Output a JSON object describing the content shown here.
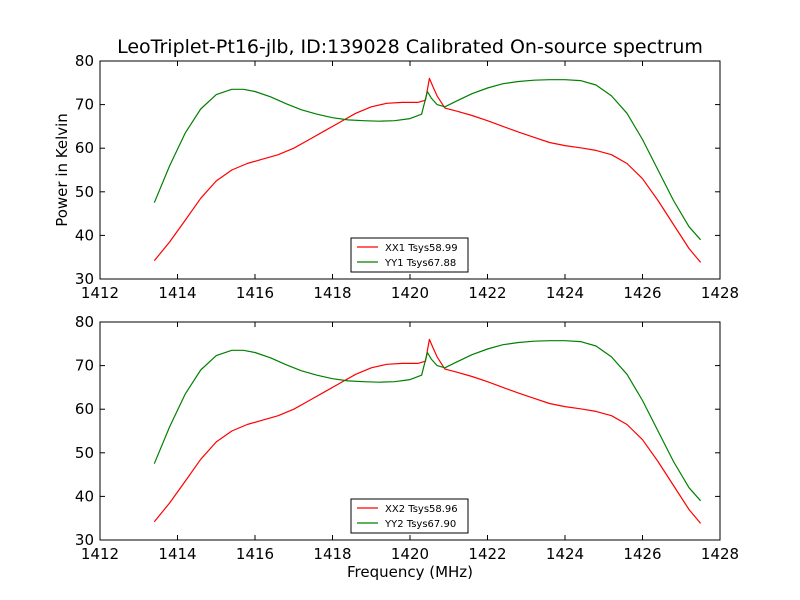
{
  "title": "LeoTriplet-Pt16-jlb, ID:139028 Calibrated On-source spectrum",
  "xlabel": "Frequency (MHz)",
  "chart_data": [
    {
      "type": "line",
      "panel": "top",
      "ylabel": "Power in Kelvin",
      "xlabel": "",
      "xlim": [
        1412,
        1428
      ],
      "ylim": [
        30,
        80
      ],
      "xticks": [
        "1412",
        "1414",
        "1416",
        "1418",
        "1420",
        "1422",
        "1424",
        "1426",
        "1428"
      ],
      "yticks": [
        "30",
        "40",
        "50",
        "60",
        "70",
        "80"
      ],
      "legend_position": "lower-center",
      "series": [
        {
          "name": "XX1 Tsys58.99",
          "color": "#ff0000",
          "x": [
            1413.4,
            1413.8,
            1414.2,
            1414.6,
            1415.0,
            1415.4,
            1415.8,
            1416.2,
            1416.6,
            1417.0,
            1417.4,
            1417.8,
            1418.2,
            1418.6,
            1419.0,
            1419.4,
            1419.8,
            1420.2,
            1420.4,
            1420.5,
            1420.6,
            1420.7,
            1420.9,
            1421.2,
            1421.6,
            1422.0,
            1422.4,
            1422.8,
            1423.2,
            1423.6,
            1424.0,
            1424.4,
            1424.8,
            1425.2,
            1425.6,
            1426.0,
            1426.4,
            1426.8,
            1427.2,
            1427.5
          ],
          "y": [
            34.2,
            38.5,
            43.5,
            48.5,
            52.5,
            55.0,
            56.5,
            57.5,
            58.5,
            60.0,
            62.0,
            64.0,
            66.0,
            68.0,
            69.5,
            70.3,
            70.5,
            70.5,
            71.0,
            76.0,
            74.0,
            72.0,
            69.2,
            68.5,
            67.5,
            66.3,
            65.0,
            63.7,
            62.5,
            61.3,
            60.6,
            60.1,
            59.5,
            58.5,
            56.5,
            53.0,
            48.0,
            42.5,
            37.0,
            33.8
          ]
        },
        {
          "name": "YY1 Tsys67.88",
          "color": "#008000",
          "x": [
            1413.4,
            1413.8,
            1414.2,
            1414.6,
            1415.0,
            1415.4,
            1415.7,
            1416.0,
            1416.4,
            1416.8,
            1417.2,
            1417.6,
            1418.0,
            1418.4,
            1418.8,
            1419.2,
            1419.6,
            1420.0,
            1420.3,
            1420.45,
            1420.55,
            1420.7,
            1420.9,
            1421.2,
            1421.6,
            1422.0,
            1422.4,
            1422.8,
            1423.2,
            1423.6,
            1424.0,
            1424.4,
            1424.8,
            1425.2,
            1425.6,
            1426.0,
            1426.4,
            1426.8,
            1427.2,
            1427.5
          ],
          "y": [
            47.5,
            56.0,
            63.5,
            69.0,
            72.3,
            73.5,
            73.5,
            73.0,
            71.8,
            70.2,
            68.8,
            67.8,
            67.0,
            66.5,
            66.3,
            66.2,
            66.3,
            66.8,
            67.8,
            73.0,
            71.5,
            70.0,
            69.5,
            70.8,
            72.5,
            73.8,
            74.8,
            75.3,
            75.6,
            75.7,
            75.7,
            75.5,
            74.5,
            72.0,
            68.0,
            62.0,
            55.0,
            48.0,
            42.0,
            39.0
          ]
        }
      ]
    },
    {
      "type": "line",
      "panel": "bottom",
      "ylabel": "",
      "xlabel": "Frequency (MHz)",
      "xlim": [
        1412,
        1428
      ],
      "ylim": [
        30,
        80
      ],
      "xticks": [
        "1412",
        "1414",
        "1416",
        "1418",
        "1420",
        "1422",
        "1424",
        "1426",
        "1428"
      ],
      "yticks": [
        "30",
        "40",
        "50",
        "60",
        "70",
        "80"
      ],
      "legend_position": "lower-center",
      "series": [
        {
          "name": "XX2 Tsys58.96",
          "color": "#ff0000",
          "x": [
            1413.4,
            1413.8,
            1414.2,
            1414.6,
            1415.0,
            1415.4,
            1415.8,
            1416.2,
            1416.6,
            1417.0,
            1417.4,
            1417.8,
            1418.2,
            1418.6,
            1419.0,
            1419.4,
            1419.8,
            1420.2,
            1420.4,
            1420.5,
            1420.6,
            1420.7,
            1420.9,
            1421.2,
            1421.6,
            1422.0,
            1422.4,
            1422.8,
            1423.2,
            1423.6,
            1424.0,
            1424.4,
            1424.8,
            1425.2,
            1425.6,
            1426.0,
            1426.4,
            1426.8,
            1427.2,
            1427.5
          ],
          "y": [
            34.2,
            38.5,
            43.5,
            48.5,
            52.5,
            55.0,
            56.5,
            57.5,
            58.5,
            60.0,
            62.0,
            64.0,
            66.0,
            68.0,
            69.5,
            70.3,
            70.5,
            70.5,
            71.0,
            76.0,
            74.0,
            72.0,
            69.2,
            68.5,
            67.5,
            66.3,
            65.0,
            63.7,
            62.5,
            61.3,
            60.6,
            60.1,
            59.5,
            58.5,
            56.5,
            53.0,
            48.0,
            42.5,
            37.0,
            33.8
          ]
        },
        {
          "name": "YY2 Tsys67.90",
          "color": "#008000",
          "x": [
            1413.4,
            1413.8,
            1414.2,
            1414.6,
            1415.0,
            1415.4,
            1415.7,
            1416.0,
            1416.4,
            1416.8,
            1417.2,
            1417.6,
            1418.0,
            1418.4,
            1418.8,
            1419.2,
            1419.6,
            1420.0,
            1420.3,
            1420.45,
            1420.55,
            1420.7,
            1420.9,
            1421.2,
            1421.6,
            1422.0,
            1422.4,
            1422.8,
            1423.2,
            1423.6,
            1424.0,
            1424.4,
            1424.8,
            1425.2,
            1425.6,
            1426.0,
            1426.4,
            1426.8,
            1427.2,
            1427.5
          ],
          "y": [
            47.5,
            56.0,
            63.5,
            69.0,
            72.3,
            73.5,
            73.5,
            73.0,
            71.8,
            70.2,
            68.8,
            67.8,
            67.0,
            66.5,
            66.3,
            66.2,
            66.3,
            66.8,
            67.8,
            73.0,
            71.5,
            70.0,
            69.5,
            70.8,
            72.5,
            73.8,
            74.8,
            75.3,
            75.6,
            75.7,
            75.7,
            75.5,
            74.5,
            72.0,
            68.0,
            62.0,
            55.0,
            48.0,
            42.0,
            39.0
          ]
        }
      ]
    }
  ]
}
